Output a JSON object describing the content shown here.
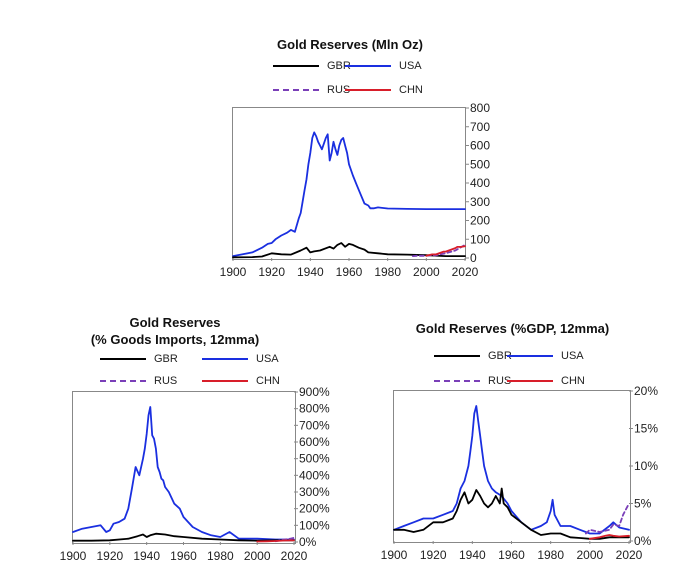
{
  "chart_data": [
    {
      "id": "top",
      "type": "line",
      "title": "Gold Reserves (Mln Oz)",
      "xlim": [
        1900,
        2020
      ],
      "ylim": [
        0,
        800
      ],
      "x_ticks": [
        "1900",
        "1920",
        "1940",
        "1960",
        "1980",
        "2000",
        "2020"
      ],
      "y_ticks": [
        "0",
        "100",
        "200",
        "300",
        "400",
        "500",
        "600",
        "700",
        "800"
      ],
      "y_tick_values": [
        0,
        100,
        200,
        300,
        400,
        500,
        600,
        700,
        800
      ],
      "legend": [
        {
          "name": "GBR",
          "color": "#000000",
          "style": "solid"
        },
        {
          "name": "USA",
          "color": "#1a2fe0",
          "style": "solid"
        },
        {
          "name": "RUS",
          "color": "#7a3fb8",
          "style": "dashed"
        },
        {
          "name": "CHN",
          "color": "#d81e2a",
          "style": "solid"
        }
      ],
      "series": [
        {
          "name": "USA",
          "color": "#1a2fe0",
          "style": "solid",
          "x": [
            1900,
            1905,
            1910,
            1915,
            1918,
            1920,
            1922,
            1925,
            1928,
            1930,
            1932,
            1934,
            1935,
            1936,
            1937,
            1938,
            1939,
            1940,
            1941,
            1942,
            1943,
            1944,
            1945,
            1946,
            1947,
            1948,
            1949,
            1950,
            1951,
            1952,
            1953,
            1954,
            1955,
            1956,
            1957,
            1958,
            1959,
            1960,
            1962,
            1964,
            1966,
            1968,
            1970,
            1971,
            1973,
            1975,
            1980,
            1990,
            2000,
            2010,
            2020
          ],
          "y": [
            10,
            20,
            30,
            55,
            75,
            80,
            100,
            120,
            135,
            150,
            140,
            210,
            240,
            300,
            360,
            420,
            500,
            560,
            640,
            670,
            650,
            620,
            600,
            580,
            610,
            640,
            660,
            520,
            560,
            620,
            580,
            550,
            600,
            630,
            640,
            600,
            560,
            500,
            440,
            390,
            340,
            290,
            280,
            265,
            265,
            270,
            264,
            262,
            261,
            261,
            261
          ]
        },
        {
          "name": "GBR",
          "color": "#000000",
          "style": "solid",
          "x": [
            1900,
            1910,
            1915,
            1920,
            1925,
            1930,
            1935,
            1938,
            1940,
            1942,
            1945,
            1950,
            1952,
            1954,
            1956,
            1958,
            1960,
            1962,
            1965,
            1968,
            1970,
            1975,
            1980,
            1990,
            2000,
            2010,
            2020
          ],
          "y": [
            4,
            5,
            8,
            25,
            20,
            18,
            40,
            55,
            30,
            35,
            40,
            60,
            50,
            70,
            80,
            60,
            75,
            70,
            55,
            45,
            30,
            25,
            20,
            18,
            15,
            10,
            10
          ]
        },
        {
          "name": "RUS",
          "color": "#7a3fb8",
          "style": "dashed",
          "x": [
            1993,
            1995,
            2000,
            2005,
            2010,
            2015,
            2020
          ],
          "y": [
            10,
            12,
            12,
            15,
            25,
            40,
            70
          ]
        },
        {
          "name": "CHN",
          "color": "#d81e2a",
          "style": "solid",
          "x": [
            2000,
            2003,
            2005,
            2009,
            2010,
            2015,
            2016,
            2018,
            2020
          ],
          "y": [
            12,
            19,
            19,
            34,
            34,
            53,
            59,
            59,
            63
          ]
        }
      ]
    },
    {
      "id": "bottom-left",
      "type": "line",
      "title": "Gold Reserves",
      "subtitle": "(% Goods Imports, 12mma)",
      "xlim": [
        1900,
        2020
      ],
      "ylim": [
        0,
        900
      ],
      "x_ticks": [
        "1900",
        "1920",
        "1940",
        "1960",
        "1980",
        "2000",
        "2020"
      ],
      "y_ticks": [
        "0%",
        "100%",
        "200%",
        "300%",
        "400%",
        "500%",
        "600%",
        "700%",
        "800%",
        "900%"
      ],
      "y_tick_values": [
        0,
        100,
        200,
        300,
        400,
        500,
        600,
        700,
        800,
        900
      ],
      "legend": [
        {
          "name": "GBR",
          "color": "#000000",
          "style": "solid"
        },
        {
          "name": "USA",
          "color": "#1a2fe0",
          "style": "solid"
        },
        {
          "name": "RUS",
          "color": "#7a3fb8",
          "style": "dashed"
        },
        {
          "name": "CHN",
          "color": "#d81e2a",
          "style": "solid"
        }
      ],
      "series": [
        {
          "name": "USA",
          "color": "#1a2fe0",
          "style": "solid",
          "x": [
            1900,
            1905,
            1910,
            1915,
            1918,
            1920,
            1922,
            1925,
            1928,
            1930,
            1932,
            1934,
            1936,
            1938,
            1939,
            1940,
            1941,
            1942,
            1943,
            1944,
            1945,
            1946,
            1947,
            1948,
            1949,
            1950,
            1952,
            1955,
            1958,
            1960,
            1965,
            1970,
            1975,
            1980,
            1985,
            1990,
            2000,
            2010,
            2020
          ],
          "y": [
            60,
            80,
            90,
            100,
            60,
            70,
            110,
            120,
            140,
            200,
            320,
            450,
            400,
            500,
            560,
            650,
            760,
            810,
            640,
            620,
            560,
            450,
            420,
            380,
            370,
            330,
            300,
            230,
            200,
            150,
            90,
            60,
            40,
            30,
            60,
            20,
            20,
            15,
            15
          ]
        },
        {
          "name": "GBR",
          "color": "#000000",
          "style": "solid",
          "x": [
            1900,
            1910,
            1920,
            1930,
            1935,
            1938,
            1940,
            1942,
            1945,
            1950,
            1955,
            1960,
            1970,
            1980,
            1990,
            2000,
            2010,
            2020
          ],
          "y": [
            8,
            8,
            10,
            20,
            35,
            45,
            30,
            40,
            50,
            45,
            35,
            30,
            20,
            15,
            10,
            8,
            10,
            10
          ]
        },
        {
          "name": "RUS",
          "color": "#7a3fb8",
          "style": "dashed",
          "x": [
            2010,
            2015,
            2018,
            2020
          ],
          "y": [
            5,
            15,
            20,
            25
          ]
        },
        {
          "name": "CHN",
          "color": "#d81e2a",
          "style": "solid",
          "x": [
            2000,
            2005,
            2010,
            2015,
            2020
          ],
          "y": [
            3,
            4,
            6,
            9,
            10
          ]
        }
      ]
    },
    {
      "id": "bottom-right",
      "type": "line",
      "title": "Gold Reserves (%GDP, 12mma)",
      "xlim": [
        1900,
        2020
      ],
      "ylim": [
        0,
        20
      ],
      "x_ticks": [
        "1900",
        "1920",
        "1940",
        "1960",
        "1980",
        "2000",
        "2020"
      ],
      "y_ticks": [
        "0%",
        "5%",
        "10%",
        "15%",
        "20%"
      ],
      "y_tick_values": [
        0,
        5,
        10,
        15,
        20
      ],
      "legend": [
        {
          "name": "GBR",
          "color": "#000000",
          "style": "solid"
        },
        {
          "name": "USA",
          "color": "#1a2fe0",
          "style": "solid"
        },
        {
          "name": "RUS",
          "color": "#7a3fb8",
          "style": "dashed"
        },
        {
          "name": "CHN",
          "color": "#d81e2a",
          "style": "solid"
        }
      ],
      "series": [
        {
          "name": "USA",
          "color": "#1a2fe0",
          "style": "solid",
          "x": [
            1900,
            1905,
            1910,
            1915,
            1920,
            1925,
            1930,
            1932,
            1934,
            1936,
            1938,
            1939,
            1940,
            1941,
            1942,
            1943,
            1944,
            1945,
            1946,
            1948,
            1950,
            1952,
            1955,
            1958,
            1960,
            1965,
            1970,
            1975,
            1978,
            1980,
            1981,
            1982,
            1985,
            1990,
            1995,
            2000,
            2005,
            2010,
            2012,
            2015,
            2020
          ],
          "y": [
            1.5,
            2,
            2.5,
            3,
            3,
            3.5,
            4,
            5,
            7,
            8,
            10,
            12,
            14,
            17,
            18,
            16,
            14,
            12,
            10,
            8,
            7,
            6.5,
            6,
            5,
            4,
            2.5,
            1.5,
            2,
            2.5,
            4,
            5.5,
            3.5,
            2,
            2,
            1.5,
            1,
            1,
            2,
            2.5,
            1.8,
            1.5
          ]
        },
        {
          "name": "GBR",
          "color": "#000000",
          "style": "solid",
          "x": [
            1900,
            1905,
            1910,
            1915,
            1920,
            1925,
            1930,
            1932,
            1934,
            1936,
            1938,
            1940,
            1942,
            1944,
            1946,
            1948,
            1950,
            1952,
            1954,
            1955,
            1956,
            1958,
            1960,
            1965,
            1970,
            1975,
            1980,
            1985,
            1990,
            1995,
            2000,
            2005,
            2010,
            2015,
            2020
          ],
          "y": [
            1.5,
            1.5,
            1.2,
            1.5,
            2.5,
            2.5,
            3,
            4,
            5.5,
            6.5,
            5,
            5.5,
            6.8,
            6,
            5,
            4.5,
            5,
            6,
            5,
            7,
            5,
            4.5,
            3.5,
            2.5,
            1.5,
            0.8,
            1,
            1,
            0.5,
            0.4,
            0.3,
            0.3,
            0.5,
            0.5,
            0.5
          ]
        },
        {
          "name": "RUS",
          "color": "#7a3fb8",
          "style": "dashed",
          "x": [
            1998,
            2000,
            2005,
            2010,
            2012,
            2015,
            2017,
            2020
          ],
          "y": [
            1,
            1.5,
            1.2,
            1.5,
            2.2,
            2,
            3.5,
            5
          ]
        },
        {
          "name": "CHN",
          "color": "#d81e2a",
          "style": "solid",
          "x": [
            2000,
            2005,
            2008,
            2010,
            2012,
            2015,
            2020
          ],
          "y": [
            0.3,
            0.5,
            0.7,
            0.8,
            0.7,
            0.6,
            0.7
          ]
        }
      ]
    }
  ]
}
